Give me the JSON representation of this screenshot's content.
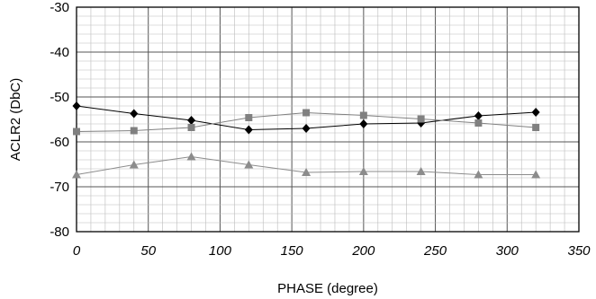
{
  "chart_data": {
    "type": "line",
    "title": "",
    "xlabel": "PHASE (degree)",
    "ylabel": "ACLR2 (DbC)",
    "xlim": [
      0,
      350
    ],
    "ylim": [
      -80,
      -30
    ],
    "x_ticks": [
      "0",
      "50",
      "100",
      "150",
      "200",
      "250",
      "300",
      "350"
    ],
    "y_ticks": [
      "-30",
      "-40",
      "-50",
      "-60",
      "-70",
      "-80"
    ],
    "grid": true,
    "legend": "none",
    "x": [
      0,
      40,
      80,
      120,
      160,
      200,
      240,
      280,
      320
    ],
    "series": [
      {
        "marker": "diamond",
        "color": "#000000",
        "values": [
          -52,
          -53.7,
          -55.2,
          -57.3,
          -57,
          -56,
          -55.8,
          -54.2,
          -53.4
        ]
      },
      {
        "marker": "square",
        "color": "#808080",
        "values": [
          -57.7,
          -57.5,
          -56.8,
          -54.6,
          -53.5,
          -54.1,
          -54.9,
          -55.8,
          -56.8
        ]
      },
      {
        "marker": "triangle",
        "color": "#8c8c8c",
        "values": [
          -67.3,
          -65.1,
          -63.3,
          -65.1,
          -66.8,
          -66.6,
          -66.6,
          -67.3,
          -67.3
        ]
      }
    ]
  }
}
